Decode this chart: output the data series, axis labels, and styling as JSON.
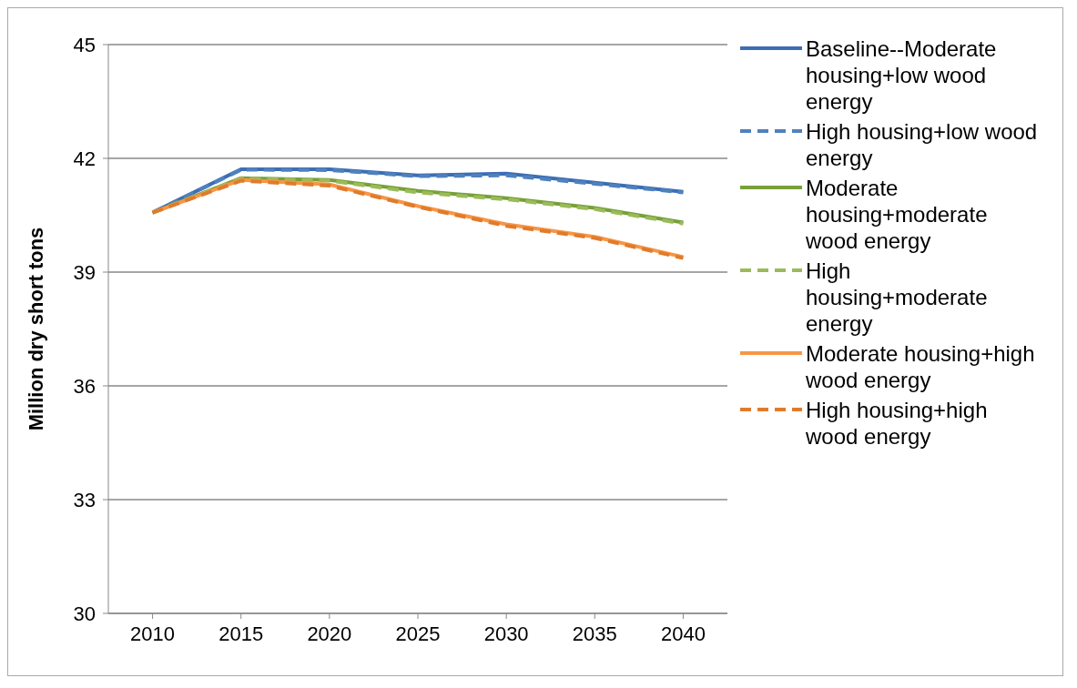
{
  "chart_data": {
    "type": "line",
    "categories": [
      "2010",
      "2015",
      "2020",
      "2025",
      "2030",
      "2035",
      "2040"
    ],
    "ylabel": "Million dry short tons",
    "ylim": [
      30,
      45
    ],
    "yticks": [
      30,
      33,
      36,
      39,
      42,
      45
    ],
    "grid": "y",
    "legend": "right",
    "marker": "none",
    "series": [
      {
        "name": "Baseline--Moderate housing+low wood energy",
        "color": "#3c6eb4",
        "line_style": "solid",
        "values": [
          40.57,
          41.71,
          41.71,
          41.55,
          41.6,
          41.36,
          41.12
        ]
      },
      {
        "name": "High housing+low wood energy",
        "color": "#4f81bd",
        "line_style": "dashed",
        "values": [
          40.57,
          41.7,
          41.69,
          41.53,
          41.55,
          41.33,
          41.1
        ]
      },
      {
        "name": "Moderate housing+moderate wood energy",
        "color": "#77a03a",
        "line_style": "solid",
        "values": [
          40.57,
          41.48,
          41.43,
          41.14,
          40.95,
          40.69,
          40.31
        ]
      },
      {
        "name": "High housing+moderate energy",
        "color": "#9bbb59",
        "line_style": "dashed",
        "values": [
          40.57,
          41.47,
          41.41,
          41.1,
          40.92,
          40.66,
          40.28
        ]
      },
      {
        "name": "Moderate housing+high wood energy",
        "color": "#f79646",
        "line_style": "solid",
        "values": [
          40.57,
          41.43,
          41.31,
          40.74,
          40.26,
          39.93,
          39.4
        ]
      },
      {
        "name": "High housing+high wood energy",
        "color": "#e07b2c",
        "line_style": "dashed",
        "values": [
          40.57,
          41.41,
          41.28,
          40.72,
          40.22,
          39.9,
          39.37
        ]
      }
    ]
  }
}
